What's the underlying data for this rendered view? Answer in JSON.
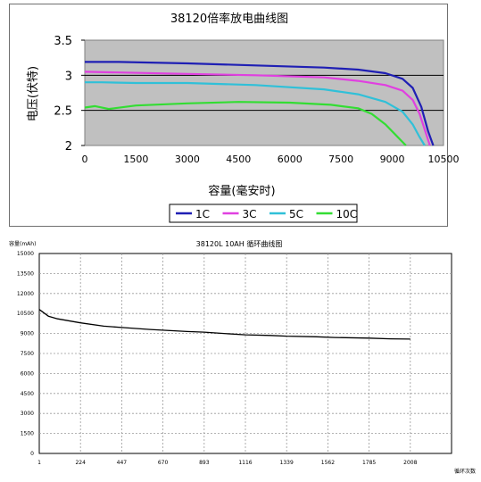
{
  "charts": [
    {
      "chart_data": {
        "type": "line",
        "title": "38120倍率放电曲线图",
        "xlabel": "容量(毫安时)",
        "ylabel": "电压(伏特)",
        "xlim": [
          0,
          10500
        ],
        "ylim": [
          2,
          3.5
        ],
        "xticks": [
          "0",
          "1500",
          "3000",
          "4500",
          "6000",
          "7500",
          "9000",
          "10500"
        ],
        "yticks": [
          "2",
          "2.5",
          "3",
          "3.5"
        ],
        "grid": "horizontal",
        "background": "#c0c0c0",
        "legend_position": "bottom",
        "series": [
          {
            "name": "1C",
            "color": "#1f1fb4",
            "x": [
              0,
              1000,
              3000,
              5000,
              7000,
              8000,
              8800,
              9300,
              9600,
              9850,
              10050,
              10200
            ],
            "y": [
              3.19,
              3.19,
              3.17,
              3.14,
              3.11,
              3.08,
              3.03,
              2.95,
              2.82,
              2.55,
              2.2,
              2.0
            ]
          },
          {
            "name": "3C",
            "color": "#e040e0",
            "x": [
              0,
              1000,
              3000,
              5000,
              7000,
              8000,
              8800,
              9300,
              9600,
              9800,
              10000,
              10100
            ],
            "y": [
              3.05,
              3.04,
              3.02,
              3.0,
              2.97,
              2.92,
              2.86,
              2.78,
              2.65,
              2.45,
              2.15,
              2.0
            ]
          },
          {
            "name": "5C",
            "color": "#30c0d8",
            "x": [
              0,
              500,
              1500,
              3000,
              5000,
              7000,
              8000,
              8800,
              9300,
              9600,
              9800,
              9950
            ],
            "y": [
              2.9,
              2.9,
              2.89,
              2.89,
              2.86,
              2.8,
              2.73,
              2.62,
              2.48,
              2.3,
              2.12,
              2.0
            ]
          },
          {
            "name": "10C",
            "color": "#33dd33",
            "x": [
              0,
              300,
              700,
              1500,
              3000,
              4500,
              6000,
              7200,
              8000,
              8400,
              8800,
              9100,
              9300,
              9400
            ],
            "y": [
              2.54,
              2.56,
              2.52,
              2.57,
              2.6,
              2.62,
              2.61,
              2.58,
              2.53,
              2.45,
              2.3,
              2.15,
              2.05,
              2.0
            ]
          }
        ]
      }
    },
    {
      "chart_data": {
        "type": "line",
        "title": "38120L 10AH 循环曲线图",
        "ylabel": "容量(mAh)",
        "xlabel": "循环次数",
        "xlim": [
          1,
          2231
        ],
        "ylim": [
          0,
          15000
        ],
        "xticks": [
          "1",
          "224",
          "447",
          "670",
          "893",
          "1116",
          "1339",
          "1562",
          "1785",
          "2008"
        ],
        "yticks": [
          "0",
          "1500",
          "3000",
          "4500",
          "6000",
          "7500",
          "9000",
          "10500",
          "12000",
          "13500",
          "15000"
        ],
        "grid": "dashed",
        "legend_position": "none",
        "series": [
          {
            "color": "#000000",
            "x": [
              1,
              50,
              100,
              224,
              350,
              447,
              600,
              800,
              893,
              1000,
              1116,
              1250,
              1339,
              1500,
              1600,
              1785,
              1900,
              2008
            ],
            "y": [
              10800,
              10300,
              10100,
              9800,
              9550,
              9450,
              9300,
              9150,
              9100,
              9000,
              8900,
              8850,
              8800,
              8750,
              8700,
              8650,
              8600,
              8580
            ]
          }
        ]
      }
    }
  ]
}
